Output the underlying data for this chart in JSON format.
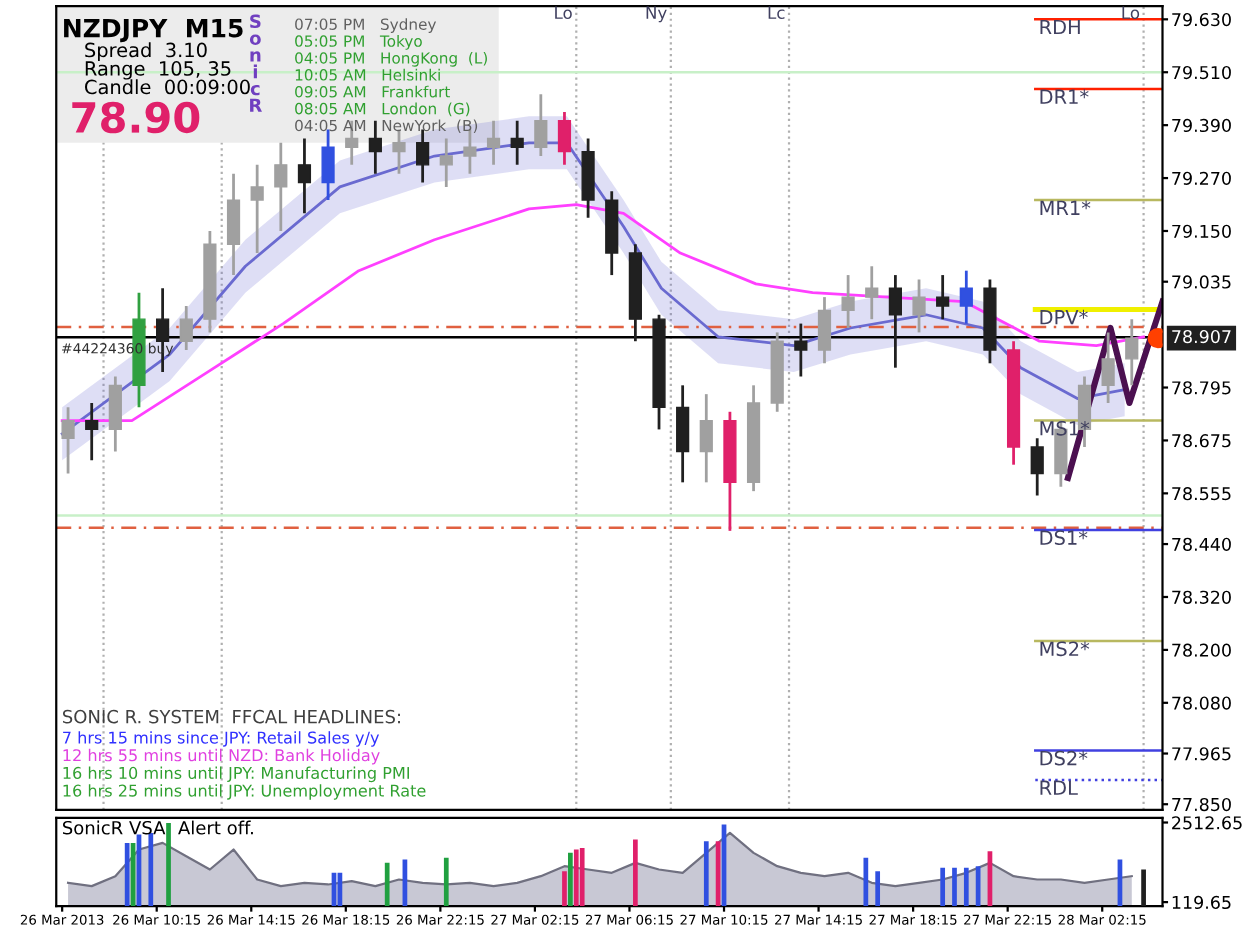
{
  "chart_data": [
    {
      "type": "candlestick",
      "tick_labels": "y",
      "x": [
        "2013-03-26T06:30",
        "2013-03-26T07:30",
        "2013-03-26T08:30",
        "2013-03-26T09:30",
        "2013-03-26T10:30",
        "2013-03-26T11:30",
        "2013-03-26T12:30",
        "2013-03-26T13:30",
        "2013-03-26T14:30",
        "2013-03-26T15:30",
        "2013-03-26T16:30",
        "2013-03-26T17:30",
        "2013-03-26T18:30",
        "2013-03-26T19:30",
        "2013-03-26T20:30",
        "2013-03-26T21:30",
        "2013-03-26T22:30",
        "2013-03-26T23:30",
        "2013-03-27T00:30",
        "2013-03-27T01:30",
        "2013-03-27T02:30",
        "2013-03-27T03:30",
        "2013-03-27T04:30",
        "2013-03-27T05:30",
        "2013-03-27T06:30",
        "2013-03-27T07:30",
        "2013-03-27T08:30",
        "2013-03-27T09:30",
        "2013-03-27T10:30",
        "2013-03-27T11:30",
        "2013-03-27T12:30",
        "2013-03-27T13:30",
        "2013-03-27T14:30",
        "2013-03-27T15:30",
        "2013-03-27T16:30",
        "2013-03-27T17:30",
        "2013-03-27T18:30",
        "2013-03-27T19:30",
        "2013-03-27T20:30",
        "2013-03-27T21:30",
        "2013-03-27T22:30",
        "2013-03-27T23:30",
        "2013-03-28T00:30",
        "2013-03-28T01:30",
        "2013-03-28T02:30",
        "2013-03-28T03:30"
      ],
      "ohlc": [
        [
          78.68,
          78.75,
          78.6,
          78.72
        ],
        [
          78.72,
          78.76,
          78.63,
          78.7
        ],
        [
          78.7,
          78.82,
          78.65,
          78.8
        ],
        [
          78.8,
          79.01,
          78.75,
          78.95
        ],
        [
          78.95,
          79.02,
          78.83,
          78.9
        ],
        [
          78.9,
          78.98,
          78.88,
          78.95
        ],
        [
          78.95,
          79.15,
          78.92,
          79.12
        ],
        [
          79.12,
          79.28,
          79.05,
          79.22
        ],
        [
          79.22,
          79.3,
          79.1,
          79.25
        ],
        [
          79.25,
          79.35,
          79.15,
          79.3
        ],
        [
          79.3,
          79.36,
          79.19,
          79.26
        ],
        [
          79.26,
          79.38,
          79.22,
          79.34
        ],
        [
          79.34,
          79.4,
          79.3,
          79.36
        ],
        [
          79.36,
          79.4,
          79.28,
          79.33
        ],
        [
          79.33,
          79.38,
          79.28,
          79.35
        ],
        [
          79.35,
          79.38,
          79.26,
          79.3
        ],
        [
          79.3,
          79.36,
          79.25,
          79.32
        ],
        [
          79.32,
          79.38,
          79.28,
          79.34
        ],
        [
          79.34,
          79.4,
          79.3,
          79.36
        ],
        [
          79.36,
          79.4,
          79.3,
          79.34
        ],
        [
          79.34,
          79.46,
          79.32,
          79.4
        ],
        [
          79.4,
          79.42,
          79.3,
          79.33
        ],
        [
          79.33,
          79.36,
          79.18,
          79.22
        ],
        [
          79.22,
          79.24,
          79.05,
          79.1
        ],
        [
          79.1,
          79.12,
          78.9,
          78.95
        ],
        [
          78.95,
          78.96,
          78.7,
          78.75
        ],
        [
          78.75,
          78.8,
          78.58,
          78.65
        ],
        [
          78.65,
          78.78,
          78.58,
          78.72
        ],
        [
          78.72,
          78.74,
          78.47,
          78.58
        ],
        [
          78.58,
          78.8,
          78.56,
          78.76
        ],
        [
          78.76,
          78.92,
          78.74,
          78.9
        ],
        [
          78.9,
          78.94,
          78.82,
          78.88
        ],
        [
          78.88,
          79.0,
          78.85,
          78.97
        ],
        [
          78.97,
          79.05,
          78.93,
          79.0
        ],
        [
          79.0,
          79.07,
          78.95,
          79.02
        ],
        [
          79.02,
          79.05,
          78.84,
          78.96
        ],
        [
          78.96,
          79.04,
          78.92,
          79.0
        ],
        [
          79.0,
          79.05,
          78.95,
          78.98
        ],
        [
          78.98,
          79.06,
          78.94,
          79.02
        ],
        [
          79.02,
          79.04,
          78.85,
          78.88
        ],
        [
          78.88,
          78.9,
          78.62,
          78.66
        ],
        [
          78.66,
          78.68,
          78.55,
          78.6
        ],
        [
          78.6,
          78.72,
          78.57,
          78.7
        ],
        [
          78.7,
          78.82,
          78.66,
          78.8
        ],
        [
          78.8,
          78.92,
          78.76,
          78.86
        ],
        [
          78.86,
          78.95,
          78.8,
          78.907
        ]
      ],
      "colors": [
        "#a0a0a0",
        "#202020",
        "#a0a0a0",
        "#30a040",
        "#202020",
        "#a0a0a0",
        "#a0a0a0",
        "#a0a0a0",
        "#a0a0a0",
        "#a0a0a0",
        "#202020",
        "#3050e0",
        "#a0a0a0",
        "#202020",
        "#a0a0a0",
        "#202020",
        "#a0a0a0",
        "#a0a0a0",
        "#a0a0a0",
        "#202020",
        "#a0a0a0",
        "#e0206a",
        "#202020",
        "#202020",
        "#202020",
        "#202020",
        "#202020",
        "#a0a0a0",
        "#e0206a",
        "#a0a0a0",
        "#a0a0a0",
        "#202020",
        "#a0a0a0",
        "#a0a0a0",
        "#a0a0a0",
        "#202020",
        "#a0a0a0",
        "#202020",
        "#3050e0",
        "#202020",
        "#e0206a",
        "#202020",
        "#a0a0a0",
        "#a0a0a0",
        "#a0a0a0",
        "#a0a0a0"
      ],
      "series": [
        {
          "type": "line",
          "color": "#6a6ad0",
          "x": [
            "2013-03-26T06:15",
            "2013-03-26T10:48",
            "2013-03-26T14:00",
            "2013-03-26T18:00",
            "2013-03-26T22:00",
            "2013-03-27T02:00",
            "2013-03-27T03:36",
            "2013-03-27T06:00",
            "2013-03-27T07:36",
            "2013-03-27T10:00",
            "2013-03-27T13:12",
            "2013-03-27T15:36",
            "2013-03-27T18:48",
            "2013-03-27T21:12",
            "2013-03-27T22:48",
            "2013-03-28T01:12",
            "2013-03-28T03:12"
          ],
          "values": [
            78.69,
            78.87,
            79.07,
            79.25,
            79.32,
            79.35,
            79.35,
            79.16,
            79.02,
            78.91,
            78.89,
            78.93,
            78.96,
            78.93,
            78.84,
            78.77,
            78.79
          ],
          "lower": [
            78.63,
            78.81,
            79.01,
            79.19,
            79.26,
            79.29,
            79.29,
            79.1,
            78.96,
            78.85,
            78.83,
            78.87,
            78.9,
            78.87,
            78.78,
            78.71,
            78.73
          ],
          "upper": [
            78.75,
            78.93,
            79.13,
            79.31,
            79.38,
            79.41,
            79.41,
            79.22,
            79.08,
            78.97,
            78.95,
            78.99,
            79.02,
            78.99,
            78.9,
            78.83,
            78.85
          ]
        },
        {
          "type": "line",
          "color": "#ff40ff",
          "x": [
            "2013-03-26T06:15",
            "2013-03-26T09:12",
            "2013-03-26T12:24",
            "2013-03-26T15:36",
            "2013-03-26T18:48",
            "2013-03-26T22:00",
            "2013-03-27T02:00",
            "2013-03-27T04:00",
            "2013-03-27T06:00",
            "2013-03-27T08:24",
            "2013-03-27T11:36",
            "2013-03-27T14:00",
            "2013-03-27T17:12",
            "2013-03-27T20:24",
            "2013-03-27T23:36",
            "2013-03-28T02:00",
            "2013-03-28T04:00"
          ],
          "values": [
            78.72,
            78.72,
            78.83,
            78.94,
            79.06,
            79.13,
            79.2,
            79.21,
            79.19,
            79.1,
            79.03,
            79.01,
            79.0,
            78.99,
            78.9,
            78.89,
            78.91
          ]
        },
        {
          "type": "line",
          "color": "#4b1050",
          "x": [
            "2013-03-28T00:48",
            "2013-03-28T02:36",
            "2013-03-28T03:24",
            "2013-03-28T04:48"
          ],
          "values": [
            78.59,
            78.93,
            78.76,
            78.99
          ]
        },
        {
          "type": "scatter",
          "marker": "circle",
          "color": "#ff4000",
          "x": [
            "2013-03-28T04:36"
          ],
          "values": [
            78.907
          ]
        }
      ],
      "xlim": [
        "2013-03-26T06:00",
        "2013-03-28T04:48"
      ],
      "ylim": [
        77.837,
        79.66
      ],
      "yticks": [
        {
          "value": 79.63,
          "label": "79.630"
        },
        {
          "value": 79.51,
          "label": "79.510"
        },
        {
          "value": 79.39,
          "label": "79.390"
        },
        {
          "value": 79.27,
          "label": "79.270"
        },
        {
          "value": 79.15,
          "label": "79.150"
        },
        79.035,
        78.795,
        78.675,
        78.555,
        {
          "value": 78.44,
          "label": "78.440"
        },
        {
          "value": 78.32,
          "label": "78.320"
        },
        {
          "value": 78.2,
          "label": "78.200"
        },
        {
          "value": 78.08,
          "label": "78.080"
        },
        77.965,
        {
          "value": 77.85,
          "label": "77.850"
        }
      ],
      "ref_lines": [
        {
          "axis": "x",
          "value": "2013-03-26T08:00",
          "label": null,
          "color": "#b0b0b0",
          "line_style": "dotted"
        },
        {
          "axis": "x",
          "value": "2013-03-26T13:00",
          "label": null,
          "color": "#b0b0b0",
          "line_style": "dotted"
        },
        {
          "axis": "x",
          "value": "2013-03-27T04:00",
          "label": "Lo",
          "color": "#b0b0b0",
          "line_style": "dotted"
        },
        {
          "axis": "x",
          "value": "2013-03-27T08:00",
          "label": "Ny",
          "color": "#b0b0b0",
          "line_style": "dotted"
        },
        {
          "axis": "x",
          "value": "2013-03-27T13:00",
          "label": "Lc",
          "color": "#b0b0b0",
          "line_style": "dotted"
        },
        {
          "axis": "x",
          "value": "2013-03-28T04:00",
          "label": "Lo",
          "color": "#b0b0b0",
          "line_style": "dotted"
        },
        {
          "axis": "y",
          "value": 79.51,
          "color": "#c8f0c8",
          "line_style": "solid"
        },
        {
          "axis": "y",
          "value": 78.505,
          "color": "#c8f0c8",
          "line_style": "solid"
        },
        {
          "axis": "y",
          "value": 78.932,
          "color": "#e06040",
          "line_style": "dashed"
        },
        {
          "axis": "y",
          "value": 78.477,
          "color": "#e06040",
          "line_style": "dashed"
        },
        {
          "axis": "y",
          "value": 78.909,
          "color": "#000000",
          "line_style": "solid"
        },
        {
          "axis": "y",
          "value": 79.63,
          "label": "RDH",
          "color": "#ff2000",
          "line_style": "solid"
        },
        {
          "axis": "y",
          "value": 79.472,
          "label": "DR1*",
          "color": "#ff2000",
          "line_style": "solid"
        },
        {
          "axis": "y",
          "value": 79.22,
          "label": "MR1*",
          "color": "#b8b860",
          "line_style": "solid"
        },
        {
          "axis": "y",
          "value": 78.972,
          "label": "DPV*",
          "color": "#f0f000",
          "line_style": "solid"
        },
        {
          "axis": "y",
          "value": 78.72,
          "label": "MS1*",
          "color": "#b8b860",
          "line_style": "solid"
        },
        {
          "axis": "y",
          "value": 78.472,
          "label": "DS1*",
          "color": "#4040e0",
          "line_style": "solid"
        },
        {
          "axis": "y",
          "value": 78.22,
          "label": "MS2*",
          "color": "#b8b860",
          "line_style": "solid"
        },
        {
          "axis": "y",
          "value": 77.972,
          "label": "DS2*",
          "color": "#4040e0",
          "line_style": "solid"
        },
        {
          "axis": "y",
          "value": 77.905,
          "label": "RDL",
          "color": "#4040e0",
          "line_style": "dotted"
        }
      ],
      "annotations": [
        "NZDJPY  M15",
        "Spread  3.10",
        "Range  105, 35",
        "Candle  00:09:00",
        "78.90",
        "S\no\nn\ni\nc\nR",
        "07:05 PM   Sydney",
        "05:05 PM   Tokyo",
        "04:05 PM   HongKong  (L)",
        "10:05 AM   Helsinki",
        "09:05 AM   Frankfurt",
        "08:05 AM   London  (G)",
        "04:05 AM   NewYork  (B)",
        "SONIC R. SYSTEM  FFCAL HEADLINES:",
        "7 hrs 15 mins since JPY: Retail Sales y/y",
        "12 hrs 55 mins until NZD: Bank Holiday",
        "16 hrs 10 mins until JPY: Manufacturing PMI",
        "16 hrs 25 mins until JPY: Unemployment Rate",
        {
          "text": "#44224360 buy",
          "x": "2013-03-26T06:12",
          "y": 78.909
        },
        {
          "text": "78.907",
          "x": "2013-03-28T04:48",
          "y": 78.907
        }
      ]
    },
    {
      "type": "area",
      "color": "#c8c8d4",
      "x": [
        "2013-03-26T06:30",
        "2013-03-26T07:30",
        "2013-03-26T08:30",
        "2013-03-26T09:30",
        "2013-03-26T10:30",
        "2013-03-26T11:30",
        "2013-03-26T12:30",
        "2013-03-26T13:30",
        "2013-03-26T14:30",
        "2013-03-26T15:30",
        "2013-03-26T16:30",
        "2013-03-26T17:30",
        "2013-03-26T18:30",
        "2013-03-26T19:30",
        "2013-03-26T20:30",
        "2013-03-26T21:30",
        "2013-03-26T22:30",
        "2013-03-26T23:30",
        "2013-03-27T00:30",
        "2013-03-27T01:30",
        "2013-03-27T02:30",
        "2013-03-27T03:30",
        "2013-03-27T04:30",
        "2013-03-27T05:30",
        "2013-03-27T06:30",
        "2013-03-27T07:30",
        "2013-03-27T08:30",
        "2013-03-27T09:30",
        "2013-03-27T10:30",
        "2013-03-27T11:30",
        "2013-03-27T12:30",
        "2013-03-27T13:30",
        "2013-03-27T14:30",
        "2013-03-27T15:30",
        "2013-03-27T16:30",
        "2013-03-27T17:30",
        "2013-03-27T18:30",
        "2013-03-27T19:30",
        "2013-03-27T20:30",
        "2013-03-27T21:30",
        "2013-03-27T22:30",
        "2013-03-27T23:30",
        "2013-03-28T00:30",
        "2013-03-28T01:30",
        "2013-03-28T02:30",
        "2013-03-28T03:30"
      ],
      "values": [
        700,
        600,
        900,
        1700,
        1900,
        1500,
        1100,
        1700,
        800,
        600,
        700,
        650,
        750,
        600,
        800,
        700,
        650,
        700,
        600,
        700,
        900,
        1200,
        1100,
        1000,
        1300,
        1100,
        1000,
        1600,
        2200,
        1600,
        1200,
        1000,
        900,
        1000,
        700,
        600,
        700,
        800,
        1000,
        1300,
        900,
        800,
        800,
        700,
        800,
        900
      ],
      "series": [
        {
          "type": "bar",
          "x": [
            "2013-03-26T09:00",
            "2013-03-26T09:15",
            "2013-03-26T09:30",
            "2013-03-26T10:00",
            "2013-03-26T10:45",
            "2013-03-26T17:45",
            "2013-03-26T18:00",
            "2013-03-26T20:00",
            "2013-03-26T20:45",
            "2013-03-26T22:30",
            "2013-03-27T03:30",
            "2013-03-27T03:45",
            "2013-03-27T04:00",
            "2013-03-27T04:15",
            "2013-03-27T06:30",
            "2013-03-27T09:30",
            "2013-03-27T10:00",
            "2013-03-27T10:15",
            "2013-03-27T16:15",
            "2013-03-27T16:45",
            "2013-03-27T19:30",
            "2013-03-27T20:00",
            "2013-03-27T20:30",
            "2013-03-27T21:00",
            "2013-03-27T21:30",
            "2013-03-28T03:00",
            "2013-03-28T04:00"
          ],
          "values": [
            1900,
            1900,
            2150,
            2200,
            2500,
            1000,
            1000,
            1300,
            1400,
            1450,
            1050,
            1600,
            1700,
            1750,
            2000,
            1950,
            1950,
            2450,
            1450,
            1050,
            1150,
            1150,
            1150,
            1200,
            1650,
            1400,
            1100
          ],
          "colors": [
            "#3050e0",
            "#20a040",
            "#3050e0",
            "#3050e0",
            "#20a040",
            "#3050e0",
            "#3050e0",
            "#20a040",
            "#3050e0",
            "#20a040",
            "#e0206a",
            "#20a040",
            "#e0206a",
            "#e0206a",
            "#e0206a",
            "#3050e0",
            "#e0206a",
            "#3050e0",
            "#3050e0",
            "#3050e0",
            "#3050e0",
            "#3050e0",
            "#3050e0",
            "#3050e0",
            "#e0206a",
            "#3050e0",
            "#202020"
          ]
        }
      ],
      "xlim": [
        "2013-03-26T06:00",
        "2013-03-28T04:48"
      ],
      "ylim": [
        0,
        2650
      ],
      "yticks": [
        119.65,
        2512.65
      ],
      "xticks": [
        {
          "value": "2013-03-26T06:15",
          "label": "26 Mar 2013"
        },
        {
          "value": "2013-03-26T10:15",
          "label": "26 Mar 10:15"
        },
        {
          "value": "2013-03-26T14:15",
          "label": "26 Mar 14:15"
        },
        {
          "value": "2013-03-26T18:15",
          "label": "26 Mar 18:15"
        },
        {
          "value": "2013-03-26T22:15",
          "label": "26 Mar 22:15"
        },
        {
          "value": "2013-03-27T02:15",
          "label": "27 Mar 02:15"
        },
        {
          "value": "2013-03-27T06:15",
          "label": "27 Mar 06:15"
        },
        {
          "value": "2013-03-27T10:15",
          "label": "27 Mar 10:15"
        },
        {
          "value": "2013-03-27T14:15",
          "label": "27 Mar 14:15"
        },
        {
          "value": "2013-03-27T18:15",
          "label": "27 Mar 18:15"
        },
        {
          "value": "2013-03-27T22:15",
          "label": "27 Mar 22:15"
        },
        {
          "value": "2013-03-28T02:15",
          "label": "28 Mar 02:15"
        }
      ],
      "annotations": [
        "SonicR VSA",
        "Alert off."
      ]
    }
  ]
}
